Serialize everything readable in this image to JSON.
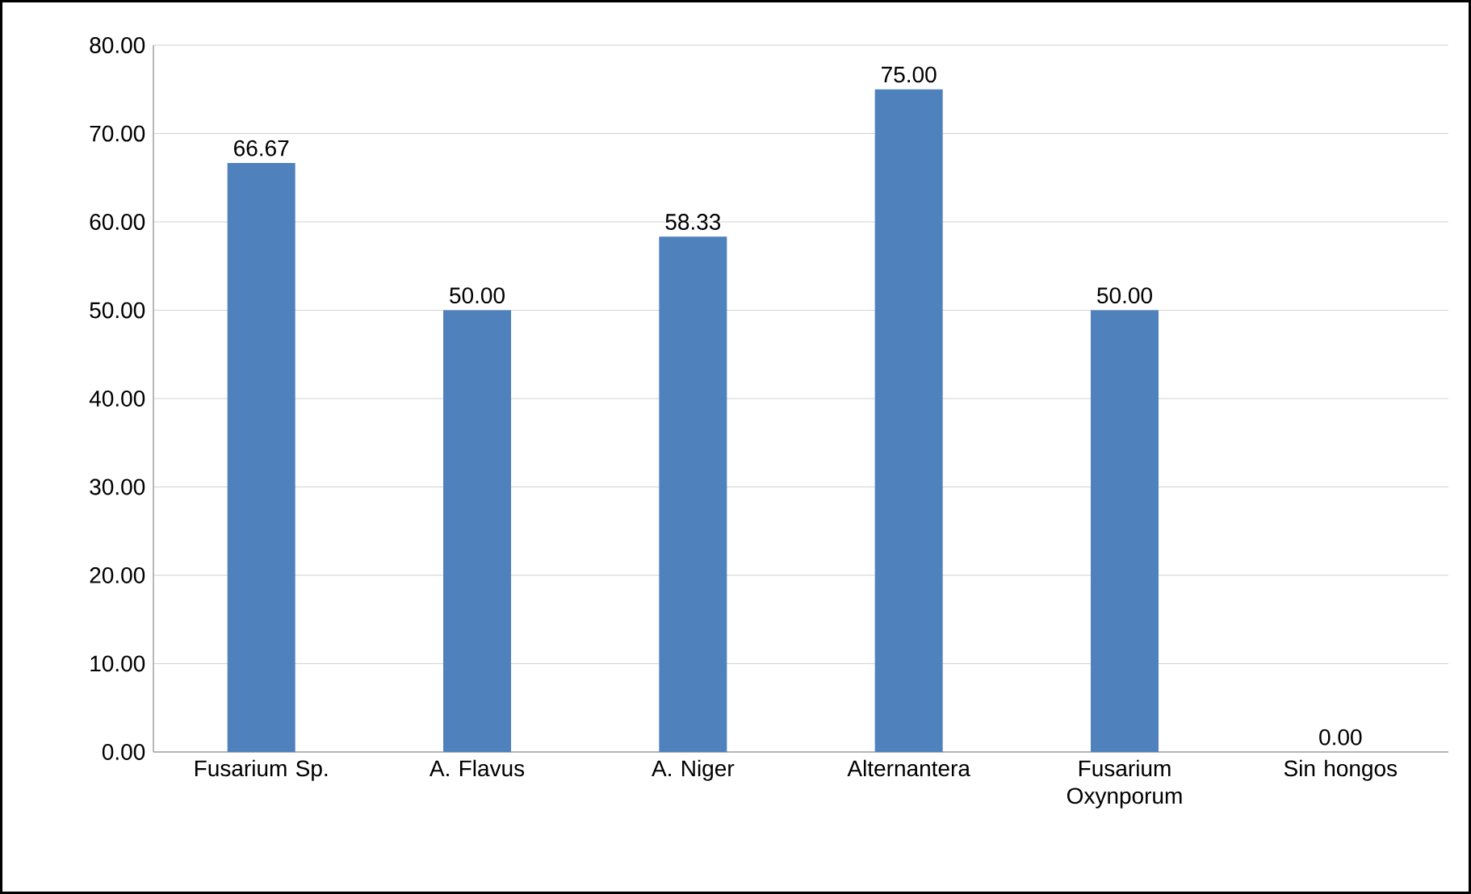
{
  "chart_data": {
    "type": "bar",
    "categories": [
      "Fusarium Sp.",
      "A. Flavus",
      "A. Niger",
      "Alternantera",
      "Fusarium Oxynporum",
      "Sin hongos"
    ],
    "values": [
      66.67,
      50.0,
      58.33,
      75.0,
      50.0,
      0.0
    ],
    "value_labels": [
      "66.67",
      "50.00",
      "58.33",
      "75.00",
      "50.00",
      "0.00"
    ],
    "color": "#4f81bd",
    "ylim": [
      0,
      80
    ],
    "yticks": [
      {
        "value": 0,
        "label": "0.00"
      },
      {
        "value": 10,
        "label": "10.00"
      },
      {
        "value": 20,
        "label": "20.00"
      },
      {
        "value": 30,
        "label": "30.00"
      },
      {
        "value": 40,
        "label": "40.00"
      },
      {
        "value": 50,
        "label": "50.00"
      },
      {
        "value": 60,
        "label": "60.00"
      },
      {
        "value": 70,
        "label": "70.00"
      },
      {
        "value": 80,
        "label": "80.00"
      }
    ],
    "grid": "y"
  }
}
